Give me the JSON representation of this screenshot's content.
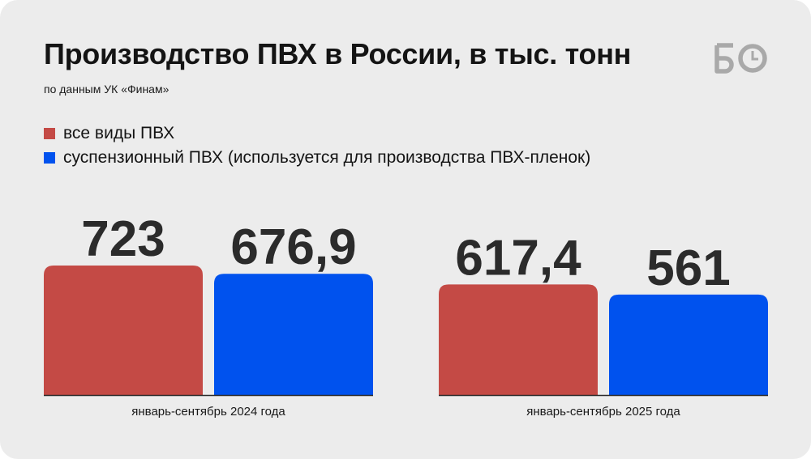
{
  "title": "Производство ПВХ в России, в тыс. тонн",
  "subtitle": "по данным УК «Финам»",
  "logo": {
    "icon": "bo-clock-logo-icon",
    "color": "#a9a9a9"
  },
  "colors": {
    "series_all": "#c44a45",
    "series_susp": "#0052ee",
    "baseline": "#2b2b2b",
    "value_text": "#2b2b2b"
  },
  "chart_data": {
    "type": "bar",
    "title": "Производство ПВХ в России, в тыс. тонн",
    "categories": [
      "январь-сентябрь 2024 года",
      "январь-сентябрь 2025 года"
    ],
    "series": [
      {
        "name": "все виды ПВХ",
        "color": "#c44a45",
        "values": [
          723,
          617.4
        ],
        "labels": [
          "723",
          "617,4"
        ]
      },
      {
        "name": "суспензионный ПВХ (используется для производства ПВХ-пленок)",
        "color": "#0052ee",
        "values": [
          676.9,
          561
        ],
        "labels": [
          "676,9",
          "561"
        ]
      }
    ],
    "ylim": [
      0,
      723
    ],
    "grid": false,
    "legend": "top-left"
  }
}
